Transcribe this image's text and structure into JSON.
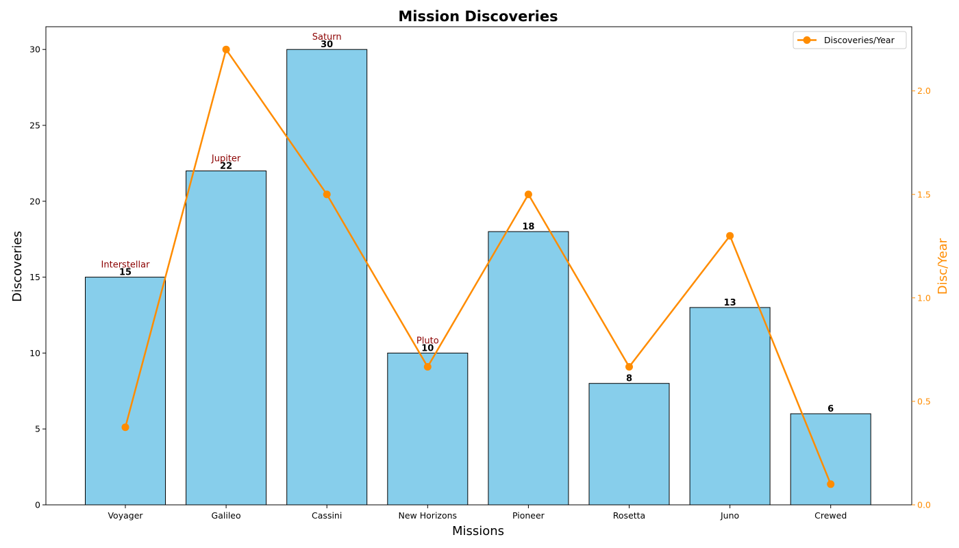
{
  "chart_data": {
    "type": "bar",
    "title": "Mission Discoveries",
    "xlabel": "Missions",
    "ylabel": "Discoveries",
    "y2label": "Disc/Year",
    "categories": [
      "Voyager",
      "Galileo",
      "Cassini",
      "New Horizons",
      "Pioneer",
      "Rosetta",
      "Juno",
      "Crewed"
    ],
    "ylim": [
      0,
      31.5
    ],
    "y_ticks": [
      0,
      5,
      10,
      15,
      20,
      25,
      30
    ],
    "y2lim": [
      0,
      2.31
    ],
    "y2_ticks": [
      "0.0",
      "0.5",
      "1.0",
      "1.5",
      "2.0"
    ],
    "series": [
      {
        "name": "",
        "type": "bar",
        "values": [
          15,
          22,
          30,
          10,
          18,
          8,
          13,
          6
        ],
        "color": "#87CEEB",
        "edge_color": "#000000"
      },
      {
        "name": "Discoveries/Year",
        "type": "line",
        "axis": "right",
        "values": [
          0.375,
          2.2,
          1.5,
          0.667,
          1.5,
          0.667,
          1.3,
          0.1
        ],
        "color": "#FF8C00"
      }
    ],
    "annotations": [
      {
        "category": "Voyager",
        "text": "Interstellar"
      },
      {
        "category": "Galileo",
        "text": "Jupiter"
      },
      {
        "category": "Cassini",
        "text": "Saturn"
      },
      {
        "category": "New Horizons",
        "text": "Pluto"
      }
    ],
    "annotation_color": "#8B0000",
    "legend": {
      "placement": "top-right"
    },
    "grid": false
  }
}
